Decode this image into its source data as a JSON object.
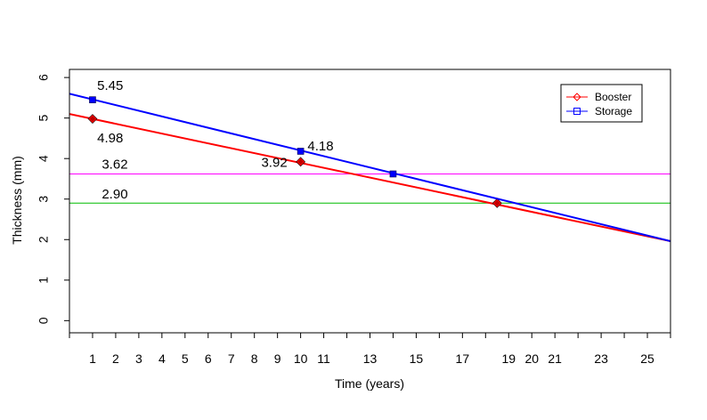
{
  "chart_data": {
    "type": "line",
    "title": "",
    "xlabel": "Time (years)",
    "ylabel": "Thickness (mm)",
    "xlim": [
      0,
      26
    ],
    "ylim": [
      -0.3,
      6.2
    ],
    "x_ticks": [
      1,
      2,
      3,
      4,
      5,
      6,
      7,
      8,
      9,
      10,
      11,
      13,
      15,
      17,
      19,
      20,
      21,
      23,
      25
    ],
    "y_ticks": [
      0,
      1,
      2,
      3,
      4,
      5,
      6
    ],
    "grid": false,
    "legend_position": "top-right",
    "series": [
      {
        "name": "Booster",
        "color": "#ff0000",
        "marker": "diamond",
        "line_start": [
          0,
          5.1
        ],
        "line_end": [
          26,
          1.96
        ],
        "points": [
          [
            1,
            4.98
          ],
          [
            10,
            3.92
          ],
          [
            18.5,
            2.9
          ]
        ]
      },
      {
        "name": "Storage",
        "color": "#0000ff",
        "marker": "square",
        "line_start": [
          0,
          5.6
        ],
        "line_end": [
          26,
          1.96
        ],
        "points": [
          [
            1,
            5.45
          ],
          [
            10,
            4.18
          ],
          [
            14,
            3.62
          ]
        ]
      }
    ],
    "hlines": [
      {
        "y": 3.62,
        "color": "#ff00ff"
      },
      {
        "y": 2.9,
        "color": "#00bb00"
      }
    ],
    "annotations": [
      {
        "text": "5.45",
        "x": 1.2,
        "y": 5.7
      },
      {
        "text": "4.98",
        "x": 1.2,
        "y": 4.4
      },
      {
        "text": "4.18",
        "x": 10.3,
        "y": 4.2
      },
      {
        "text": "3.92",
        "x": 8.3,
        "y": 3.8
      },
      {
        "text": "3.62",
        "x": 1.4,
        "y": 3.75
      },
      {
        "text": "2.90",
        "x": 1.4,
        "y": 3.02
      }
    ]
  }
}
